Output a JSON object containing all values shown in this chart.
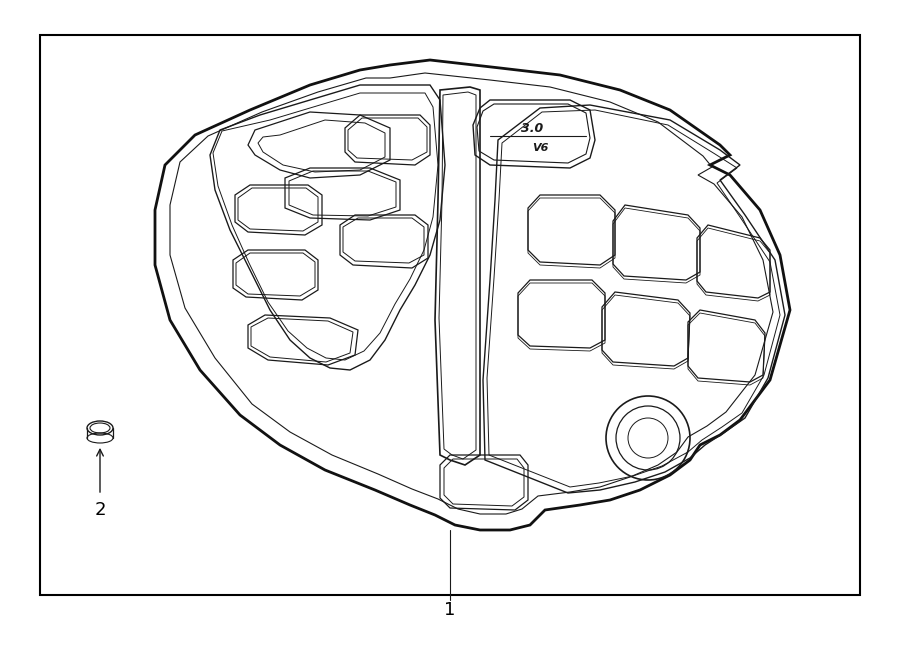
{
  "background_color": "#ffffff",
  "border_color": "#000000",
  "line_color": "#1a1a1a",
  "fig_width": 9.0,
  "fig_height": 6.61,
  "label_1": "1",
  "label_2": "2",
  "label_fontsize": 13
}
